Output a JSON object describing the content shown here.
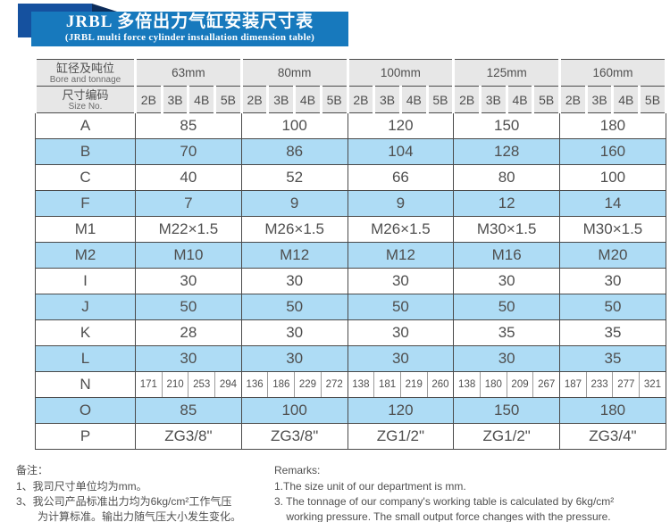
{
  "title": {
    "line1": "JRBL 多倍出力气缸安装尺寸表",
    "line2": "(JRBL multi force cylinder installation dimension table)"
  },
  "table": {
    "corner_top": {
      "zh": "缸径及吨位",
      "en": "Bore and tonnage"
    },
    "corner_bottom": {
      "zh": "尺寸编码",
      "en": "Size No."
    },
    "bores": [
      "63mm",
      "80mm",
      "100mm",
      "125mm",
      "160mm"
    ],
    "size_codes": [
      "2B",
      "3B",
      "4B",
      "5B"
    ],
    "rows": [
      {
        "label": "A",
        "values": [
          "85",
          "100",
          "120",
          "150",
          "180"
        ]
      },
      {
        "label": "B",
        "values": [
          "70",
          "86",
          "104",
          "128",
          "160"
        ]
      },
      {
        "label": "C",
        "values": [
          "40",
          "52",
          "66",
          "80",
          "100"
        ]
      },
      {
        "label": "F",
        "values": [
          "7",
          "9",
          "9",
          "12",
          "14"
        ]
      },
      {
        "label": "M1",
        "values": [
          "M22×1.5",
          "M26×1.5",
          "M26×1.5",
          "M30×1.5",
          "M30×1.5"
        ]
      },
      {
        "label": "M2",
        "values": [
          "M10",
          "M12",
          "M12",
          "M16",
          "M20"
        ]
      },
      {
        "label": "I",
        "values": [
          "30",
          "30",
          "30",
          "30",
          "30"
        ]
      },
      {
        "label": "J",
        "values": [
          "50",
          "50",
          "50",
          "50",
          "50"
        ]
      },
      {
        "label": "K",
        "values": [
          "28",
          "30",
          "30",
          "35",
          "35"
        ]
      },
      {
        "label": "L",
        "values": [
          "30",
          "30",
          "30",
          "30",
          "35"
        ]
      },
      {
        "label": "N",
        "values": [
          "171",
          "210",
          "253",
          "294",
          "136",
          "186",
          "229",
          "272",
          "138",
          "181",
          "219",
          "260",
          "138",
          "180",
          "209",
          "267",
          "187",
          "233",
          "277",
          "321"
        ]
      },
      {
        "label": "O",
        "values": [
          "85",
          "100",
          "120",
          "150",
          "180"
        ]
      },
      {
        "label": "P",
        "values": [
          "ZG3/8\"",
          "ZG3/8\"",
          "ZG1/2\"",
          "ZG1/2\"",
          "ZG3/4\""
        ]
      }
    ]
  },
  "remarks": {
    "zh": {
      "heading": "备注：",
      "lines": [
        "1、我司尺寸单位均为mm。",
        "3、我公司产品标准出力均为6kg/cm²工作气压",
        "　　为计算标准。输出力随气压大小发生变化。"
      ]
    },
    "en": {
      "heading": "Remarks:",
      "lines": [
        "1.The size unit of our department is mm.",
        "3. The tonnage of our company's working table is calculated by 6kg/cm²",
        "    working pressure. The small output force changes with the pressure."
      ]
    }
  },
  "colors": {
    "banner_blue": "#1779bd",
    "ribbon_blue": "#15519f",
    "fold_navy": "#0c2c5a",
    "row_blue": "#aedcf5",
    "header_gray": "#e7e7e7",
    "border_dark": "#4a4a4a"
  }
}
